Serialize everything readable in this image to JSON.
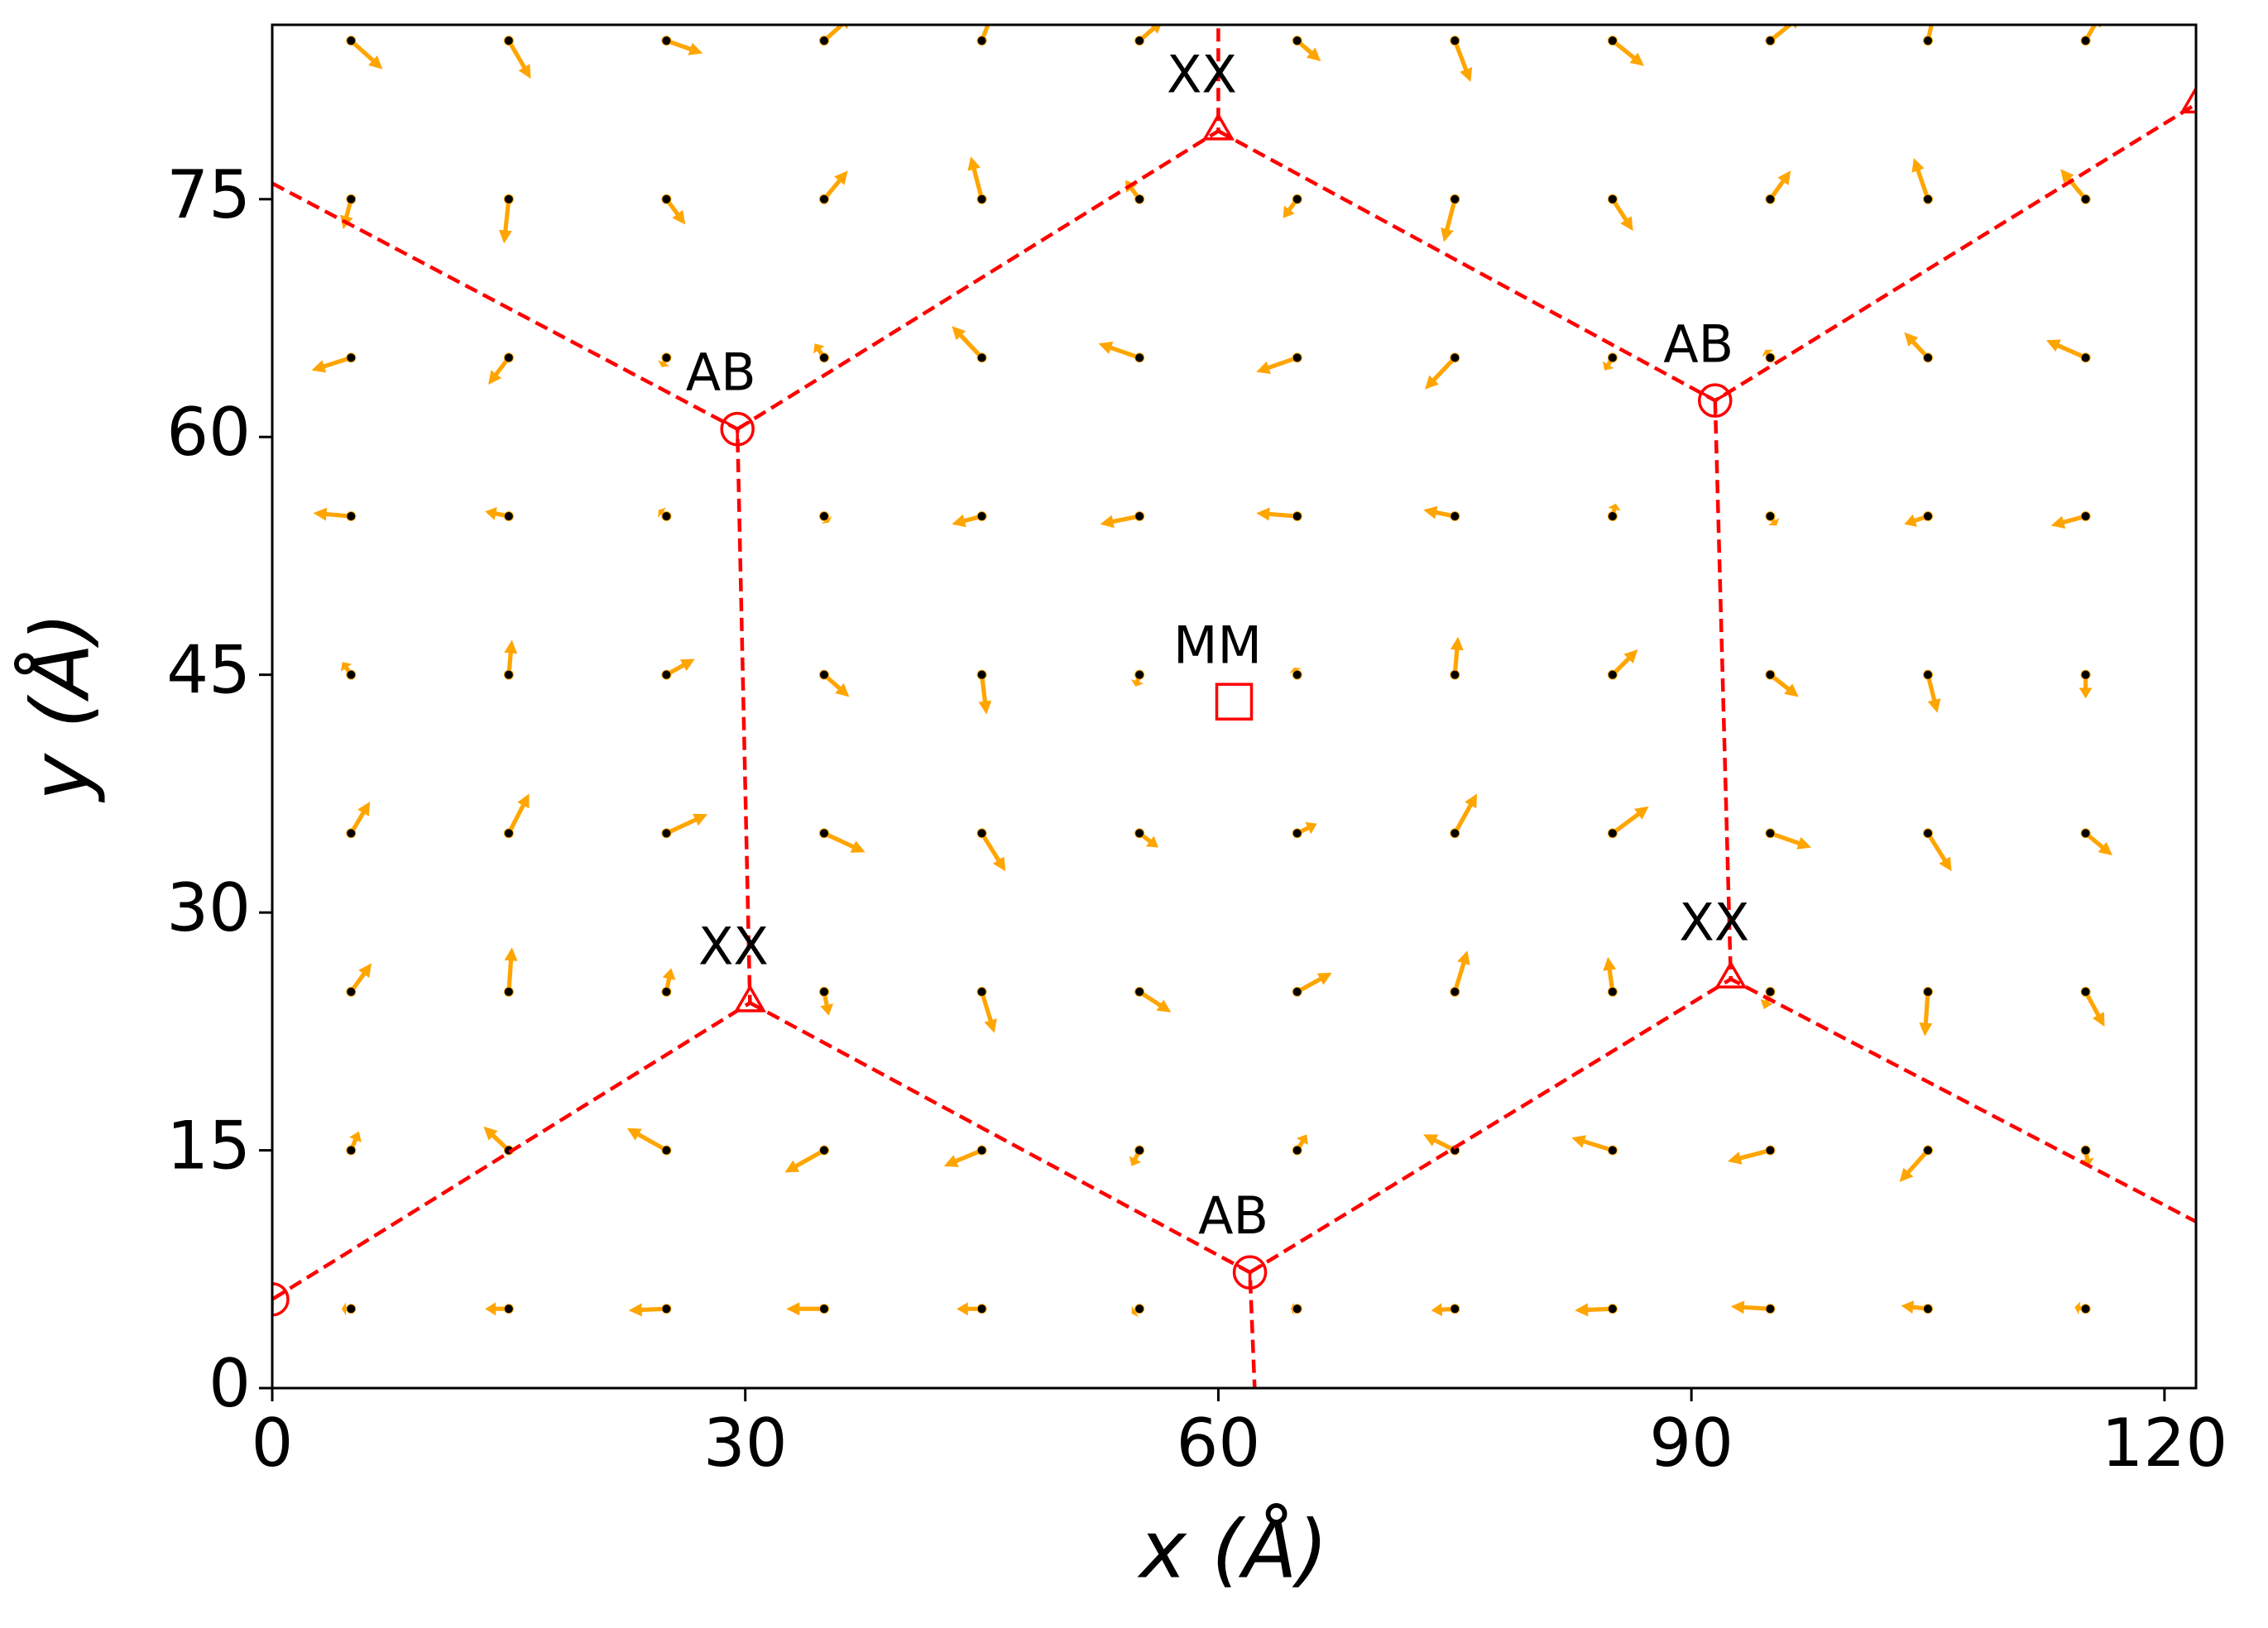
{
  "chart_data": {
    "type": "quiver",
    "xlabel": "x (Å)",
    "ylabel": "y (Å)",
    "xlim": [
      0,
      122
    ],
    "ylim": [
      0,
      86
    ],
    "xticks": [
      0,
      30,
      60,
      90,
      120
    ],
    "yticks": [
      0,
      15,
      30,
      45,
      60,
      75
    ],
    "arrow_color": "#ffa500",
    "point_color": "#000000",
    "field": {
      "x": [
        5,
        15,
        25,
        35,
        45,
        55,
        65,
        75,
        85,
        95,
        105,
        115,
        5,
        15,
        25,
        35,
        45,
        55,
        65,
        75,
        85,
        95,
        105,
        115,
        5,
        15,
        25,
        35,
        45,
        55,
        65,
        75,
        85,
        95,
        105,
        115,
        5,
        15,
        25,
        35,
        45,
        55,
        65,
        75,
        85,
        95,
        105,
        115,
        5,
        15,
        25,
        35,
        45,
        55,
        65,
        75,
        85,
        95,
        105,
        115,
        5,
        15,
        25,
        35,
        45,
        55,
        65,
        75,
        85,
        95,
        105,
        115,
        5,
        15,
        25,
        35,
        45,
        55,
        65,
        75,
        85,
        95,
        105,
        115,
        5,
        15,
        25,
        35,
        45,
        55,
        65,
        75,
        85,
        95,
        105,
        115,
        5,
        15,
        25,
        35,
        45,
        55,
        65,
        75,
        85,
        95,
        105,
        115
      ],
      "y": [
        5,
        5,
        5,
        5,
        5,
        5,
        5,
        5,
        5,
        5,
        5,
        5,
        15,
        15,
        15,
        15,
        15,
        15,
        15,
        15,
        15,
        15,
        15,
        15,
        25,
        25,
        25,
        25,
        25,
        25,
        25,
        25,
        25,
        25,
        25,
        25,
        35,
        35,
        35,
        35,
        35,
        35,
        35,
        35,
        35,
        35,
        35,
        35,
        45,
        45,
        45,
        45,
        45,
        45,
        45,
        45,
        45,
        45,
        45,
        45,
        55,
        55,
        55,
        55,
        55,
        55,
        55,
        55,
        55,
        55,
        55,
        55,
        65,
        65,
        65,
        65,
        65,
        65,
        65,
        65,
        65,
        65,
        65,
        65,
        75,
        75,
        75,
        75,
        75,
        75,
        75,
        75,
        75,
        75,
        75,
        75,
        85,
        85,
        85,
        85,
        85,
        85,
        85,
        85,
        85,
        85,
        85,
        85
      ],
      "u": [
        -0.6,
        -1.5,
        -2.4,
        -2.4,
        -1.6,
        -0.5,
        -0.4,
        -1.5,
        -2.4,
        -2.5,
        -1.7,
        -0.7,
        0.5,
        -1.6,
        -2.5,
        -2.5,
        -2.4,
        -0.5,
        0.6,
        -2.0,
        -2.6,
        -2.7,
        -1.8,
        0.2,
        1.3,
        0.2,
        0.3,
        0.3,
        0.8,
        2.0,
        2.2,
        0.8,
        -0.3,
        -0.4,
        -0.2,
        1.2,
        1.2,
        1.3,
        2.6,
        2.6,
        1.5,
        1.2,
        1.25,
        1.4,
        2.3,
        2.6,
        1.5,
        1.7,
        -0.55,
        0.2,
        1.8,
        1.6,
        0.3,
        -0.25,
        -0.2,
        0.2,
        1.6,
        1.8,
        0.6,
        0,
        -2.4,
        -1.5,
        -0.5,
        0.3,
        -1.9,
        -2.5,
        -2.6,
        -2.0,
        0.2,
        0.4,
        -1.5,
        -2.2,
        -2.5,
        -1.3,
        -0.3,
        -0.6,
        -1.9,
        -2.6,
        -2.6,
        -1.9,
        -0.5,
        -0.3,
        -1.5,
        -2.5,
        -0.5,
        -0.3,
        1.2,
        1.5,
        -0.7,
        -0.9,
        -0.9,
        -0.7,
        1.3,
        1.3,
        -0.9,
        -1.6,
        2.0,
        1.4,
        2.3,
        1.8,
        1.0,
        1.5,
        1.5,
        1.0,
        2.0,
        2.0,
        0.6,
        1.0
      ],
      "v": [
        0,
        0,
        -0.1,
        0,
        0,
        -0.3,
        0,
        -0.1,
        -0.1,
        0.15,
        0.2,
        0.1,
        1.2,
        1.5,
        1.4,
        -1.4,
        -1.0,
        -1.0,
        1.0,
        1.0,
        0.8,
        -0.7,
        -2.0,
        -1.0,
        1.8,
        2.8,
        1.5,
        -1.5,
        -2.6,
        -1.3,
        1.2,
        2.6,
        2.2,
        -1.1,
        -2.8,
        -2.2,
        2.0,
        2.5,
        1.2,
        -1.2,
        -2.4,
        -0.9,
        0.6,
        2.5,
        1.7,
        -0.9,
        -2.4,
        -1.4,
        0.8,
        2.2,
        1.0,
        -1.4,
        -2.5,
        -0.75,
        0.45,
        2.4,
        1.6,
        -1.4,
        -2.4,
        -1.5,
        0.2,
        0.3,
        0.4,
        -0.4,
        -0.5,
        -0.5,
        0.2,
        0.4,
        0.8,
        -0.6,
        -0.5,
        -0.6,
        -0.8,
        -1.7,
        -0.6,
        0.9,
        2.0,
        0.9,
        -0.9,
        -2.0,
        -0.8,
        0.5,
        1.6,
        1.1,
        -1.9,
        -2.8,
        -1.6,
        1.8,
        2.7,
        1.2,
        -1.2,
        -2.7,
        -2.0,
        1.8,
        2.6,
        1.9,
        -1.8,
        -2.4,
        -0.8,
        1.6,
        2.6,
        1.3,
        -1.3,
        -2.6,
        -1.6,
        1.6,
        2.7,
        1.75
      ]
    },
    "line_color": "#ff0000",
    "lines": [
      {
        "x": [
          0,
          29.5,
          30.3,
          0
        ],
        "y": [
          76,
          60.5,
          24.3,
          5.6
        ]
      },
      {
        "x": [
          29.5,
          60,
          60
        ],
        "y": [
          60.5,
          79.3,
          86
        ]
      },
      {
        "x": [
          60,
          91.5,
          122
        ],
        "y": [
          79.3,
          62.3,
          81
        ]
      },
      {
        "x": [
          91.5,
          92.5,
          122
        ],
        "y": [
          62.3,
          25.8,
          10.5
        ]
      },
      {
        "x": [
          30.3,
          62,
          62.3
        ],
        "y": [
          24.3,
          7.3,
          0
        ]
      },
      {
        "x": [
          62,
          92.5
        ],
        "y": [
          7.3,
          25.8
        ]
      }
    ],
    "markers": [
      {
        "shape": "triangle",
        "x": 30.3,
        "y": 24.3,
        "label": "XX"
      },
      {
        "shape": "triangle",
        "x": 60,
        "y": 79.3,
        "label": "XX"
      },
      {
        "shape": "triangle",
        "x": 92.5,
        "y": 25.8,
        "label": "XX"
      },
      {
        "shape": "triangle",
        "x": 122,
        "y": 81
      },
      {
        "shape": "circle-y",
        "x": 29.5,
        "y": 60.5,
        "label": "AB"
      },
      {
        "shape": "circle-y",
        "x": 91.5,
        "y": 62.3,
        "label": "AB"
      },
      {
        "shape": "circle-y",
        "x": 62,
        "y": 7.3,
        "label": "AB"
      },
      {
        "shape": "circle-y",
        "x": 0,
        "y": 5.6
      },
      {
        "shape": "square",
        "x": 61,
        "y": 43.3,
        "label": "MM"
      }
    ]
  }
}
